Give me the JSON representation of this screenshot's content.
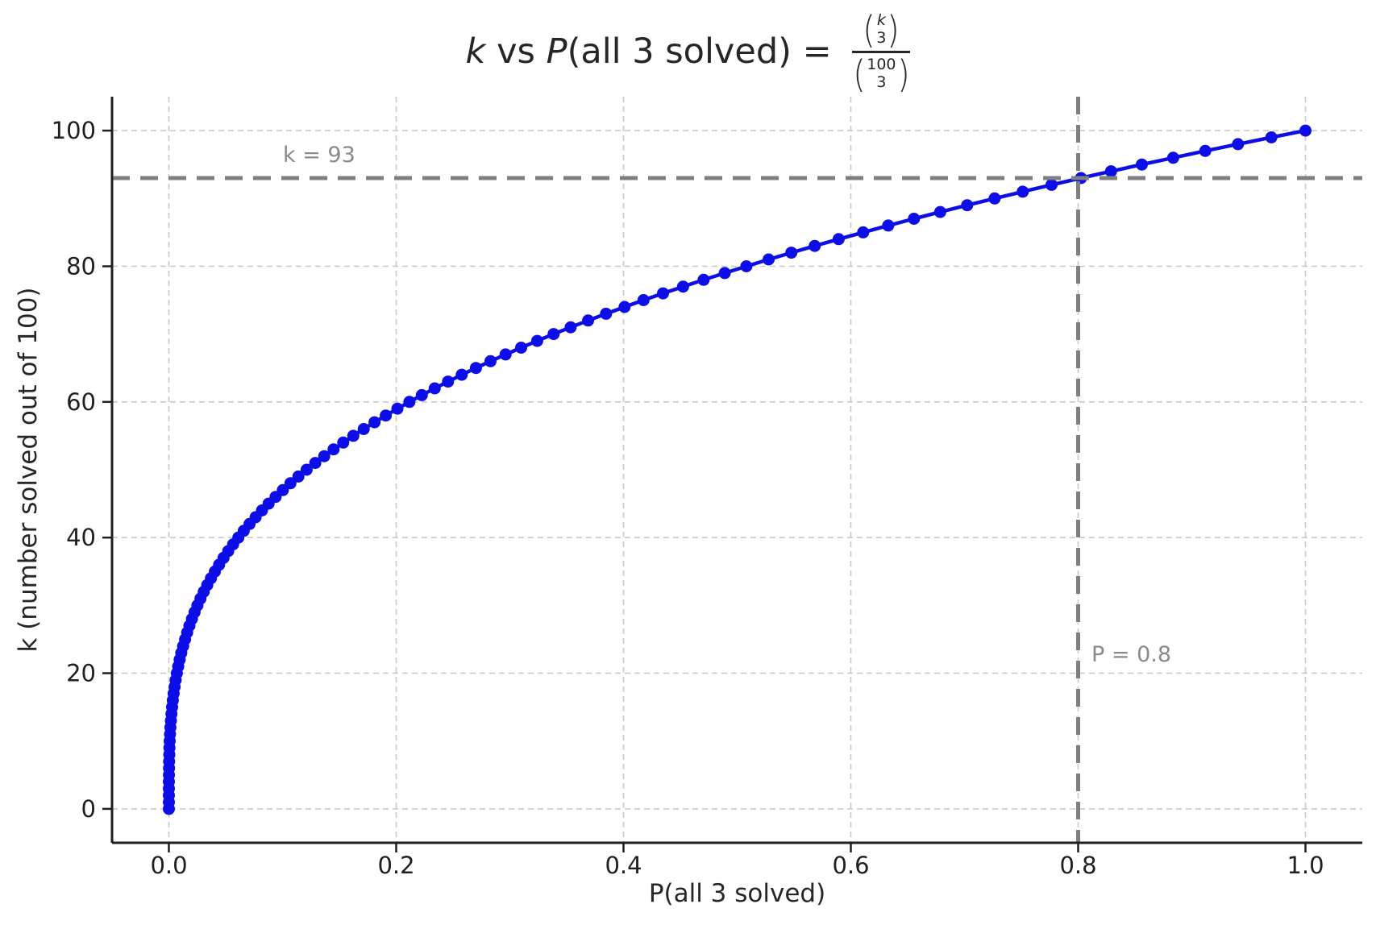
{
  "chart_data": {
    "type": "line",
    "marker": "circle",
    "title_text": "k vs P(all 3 solved) = C(k,3) / C(100,3)",
    "title_parts": {
      "k": "k",
      "vs": " vs ",
      "P": "P",
      "rest": "(all 3 solved) = ",
      "num_binom": {
        "top": "k",
        "bottom": "3"
      },
      "den_binom": {
        "top": "100",
        "bottom": "3"
      }
    },
    "xlabel": "P(all 3 solved)",
    "ylabel": "k (number solved out of 100)",
    "xlim": [
      -0.05,
      1.05
    ],
    "ylim": [
      -5,
      105
    ],
    "grid": true,
    "legend": "none",
    "xticks": [
      "0.0",
      "0.2",
      "0.4",
      "0.6",
      "0.8",
      "1.0"
    ],
    "xtick_values": [
      0,
      0.2,
      0.4,
      0.6,
      0.8,
      1.0
    ],
    "yticks": [
      "0",
      "20",
      "40",
      "60",
      "80",
      "100"
    ],
    "ytick_values": [
      0,
      20,
      40,
      60,
      80,
      100
    ],
    "series": [
      {
        "name": "P(all 3 solved) = C(k,3)/C(100,3)",
        "x": [
          0,
          0,
          0,
          1e-05,
          2e-05,
          6e-05,
          0.00012,
          0.00022,
          0.00035,
          0.00052,
          0.00074,
          0.00102,
          0.00136,
          0.00177,
          0.00225,
          0.00281,
          0.00346,
          0.00421,
          0.00505,
          0.00599,
          0.00705,
          0.00822,
          0.00952,
          0.01095,
          0.01252,
          0.01422,
          0.01608,
          0.01809,
          0.02026,
          0.0226,
          0.02511,
          0.0278,
          0.03067,
          0.03374,
          0.03701,
          0.04048,
          0.04416,
          0.04805,
          0.05217,
          0.05652,
          0.0611,
          0.06592,
          0.071,
          0.07632,
          0.0819,
          0.08776,
          0.09388,
          0.10028,
          0.10696,
          0.11394,
          0.12121,
          0.12879,
          0.13667,
          0.14487,
          0.15339,
          0.16224,
          0.17143,
          0.18095,
          0.19082,
          0.20105,
          0.21163,
          0.22257,
          0.23389,
          0.24558,
          0.25766,
          0.27013,
          0.28299,
          0.29626,
          0.30993,
          0.32402,
          0.33853,
          0.35346,
          0.36883,
          0.38464,
          0.40089,
          0.41759,
          0.43476,
          0.45238,
          0.47048,
          0.48905,
          0.5081,
          0.52764,
          0.54768,
          0.56822,
          0.58926,
          0.61082,
          0.6329,
          0.6555,
          0.67864,
          0.70231,
          0.72653,
          0.7513,
          0.77662,
          0.80251,
          0.82897,
          0.856,
          0.88361,
          0.91181,
          0.94061,
          0.97,
          1
        ],
        "y": [
          0,
          1,
          2,
          3,
          4,
          5,
          6,
          7,
          8,
          9,
          10,
          11,
          12,
          13,
          14,
          15,
          16,
          17,
          18,
          19,
          20,
          21,
          22,
          23,
          24,
          25,
          26,
          27,
          28,
          29,
          30,
          31,
          32,
          33,
          34,
          35,
          36,
          37,
          38,
          39,
          40,
          41,
          42,
          43,
          44,
          45,
          46,
          47,
          48,
          49,
          50,
          51,
          52,
          53,
          54,
          55,
          56,
          57,
          58,
          59,
          60,
          61,
          62,
          63,
          64,
          65,
          66,
          67,
          68,
          69,
          70,
          71,
          72,
          73,
          74,
          75,
          76,
          77,
          78,
          79,
          80,
          81,
          82,
          83,
          84,
          85,
          86,
          87,
          88,
          89,
          90,
          91,
          92,
          93,
          94,
          95,
          96,
          97,
          98,
          99,
          100
        ]
      }
    ],
    "reference_lines": {
      "hline": {
        "k": 93,
        "label": "k = 93"
      },
      "vline": {
        "p": 0.8,
        "label": "P = 0.8"
      }
    },
    "colors": {
      "line": "#0d0de8",
      "grid": "#c9c9c9",
      "ref": "#7f7f7f",
      "ref_label": "#8a8a8a",
      "axis": "#1f1f1f"
    }
  }
}
